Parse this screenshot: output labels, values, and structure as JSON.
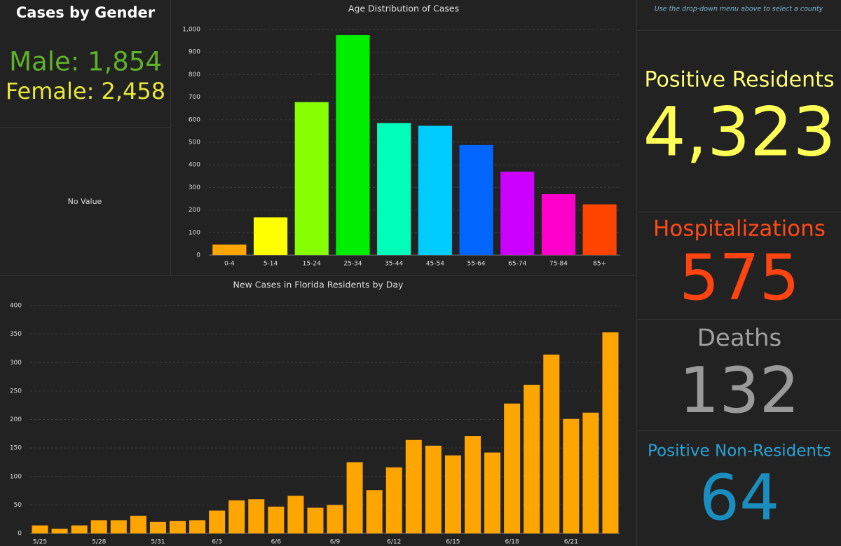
{
  "gender": {
    "title": "Cases by Gender",
    "male": "Male: 1,854",
    "female": "Female: 2,458",
    "male_color": "#5fb02a",
    "female_color": "#e6e63c"
  },
  "no_value": "No Value",
  "note": "Use the drop-down menu above to select a county",
  "stats": [
    {
      "label": "Positive Residents",
      "value": "4,323",
      "color": "#ffff55",
      "label_color": "#ffff77"
    },
    {
      "label": "Hospitalizations",
      "value": "575",
      "color": "#ff4411",
      "label_color": "#ff4a1a"
    },
    {
      "label": "Deaths",
      "value": "132",
      "color": "#9a9a9a",
      "label_color": "#a0a0a0"
    },
    {
      "label": "Positive Non-Residents",
      "value": "64",
      "color": "#1a8fbf",
      "label_color": "#2aa3d6"
    }
  ],
  "chart_data": [
    {
      "type": "bar",
      "title": "Age Distribution of Cases",
      "categories": [
        "0-4",
        "5-14",
        "15-24",
        "25-34",
        "35-44",
        "45-54",
        "55-64",
        "65-74",
        "75-84",
        "85+"
      ],
      "values": [
        47,
        167,
        678,
        975,
        585,
        573,
        488,
        370,
        270,
        225
      ],
      "colors": [
        "#ffa500",
        "#ffff00",
        "#88ff00",
        "#00ee00",
        "#00ffbb",
        "#00ccff",
        "#0066ff",
        "#cc00ff",
        "#ff00cc",
        "#ff4400"
      ],
      "ylim": [
        0,
        1000
      ],
      "yticks": [
        0,
        100,
        200,
        300,
        400,
        500,
        600,
        700,
        800,
        900,
        {
          "value": 1000,
          "label": "1,000"
        }
      ],
      "grid": true
    },
    {
      "type": "bar",
      "title": "New Cases in Florida Residents by Day",
      "categories": [
        "5/25",
        null,
        null,
        "5/28",
        null,
        null,
        "5/31",
        null,
        null,
        "6/3",
        null,
        null,
        "6/6",
        null,
        null,
        "6/9",
        null,
        null,
        "6/12",
        null,
        null,
        "6/15",
        null,
        null,
        "6/18",
        null,
        null,
        "6/21",
        null,
        null
      ],
      "values": [
        14,
        8,
        14,
        23,
        23,
        31,
        20,
        22,
        23,
        40,
        58,
        60,
        47,
        66,
        45,
        50,
        125,
        76,
        116,
        164,
        154,
        137,
        171,
        142,
        228,
        261,
        314,
        201,
        212,
        353
      ],
      "color": "#ffa500",
      "ylim": [
        0,
        400
      ],
      "yticks": [
        0,
        50,
        100,
        150,
        200,
        250,
        300,
        350,
        400
      ],
      "grid": true
    }
  ]
}
